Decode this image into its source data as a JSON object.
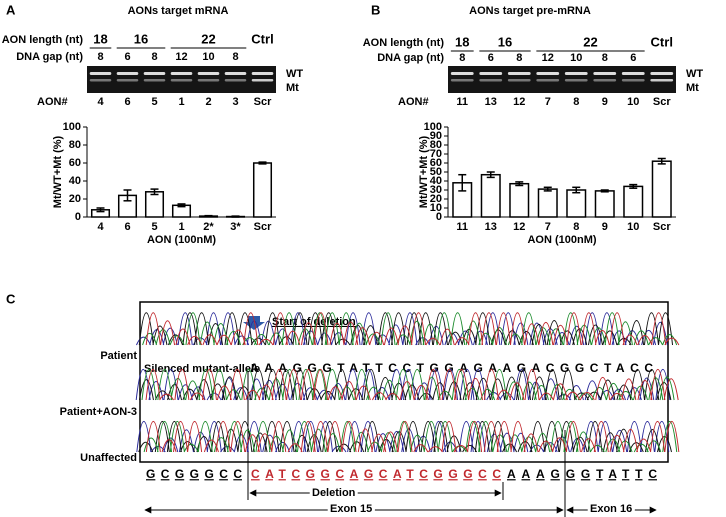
{
  "chart_data": [
    {
      "type": "bar",
      "panel_label": "A",
      "title": "AONs target mRNA",
      "ylabel": "Mt/WT+Mt (%)",
      "xlabel": "AON (100nM)",
      "categories": [
        "4",
        "6",
        "5",
        "1",
        "2*",
        "3*",
        "Scr"
      ],
      "values": [
        8,
        24,
        28,
        13,
        1,
        0.5,
        60
      ],
      "errors": [
        2,
        6,
        3,
        1.5,
        0.5,
        0.5,
        1
      ],
      "ylim": [
        0,
        100
      ],
      "yticks": [
        0,
        20,
        40,
        60,
        80,
        100
      ],
      "color": "#ffffff"
    },
    {
      "type": "bar",
      "panel_label": "B",
      "title": "AONs target pre-mRNA",
      "ylabel": "Mt/WT+Mt (%)",
      "xlabel": "AON (100nM)",
      "categories": [
        "11",
        "13",
        "12",
        "7",
        "8",
        "9",
        "10",
        "Scr"
      ],
      "values": [
        38,
        47,
        37,
        31,
        30,
        29,
        34,
        62
      ],
      "errors": [
        9,
        3,
        2,
        2,
        3,
        1,
        2,
        3
      ],
      "ylim": [
        0,
        100
      ],
      "yticks": [
        0,
        10,
        20,
        30,
        40,
        50,
        60,
        70,
        80,
        90,
        100
      ],
      "color": "#ffffff"
    }
  ],
  "gels": [
    {
      "rows": [
        {
          "label": "AON length (nt)",
          "items": [
            "18",
            "16",
            "22",
            "Ctrl"
          ]
        },
        {
          "label": "DNA gap (nt)",
          "items": [
            "8",
            "6",
            "8",
            "12",
            "10",
            "8"
          ]
        }
      ],
      "band_labels": [
        "WT",
        "Mt"
      ],
      "aon_label": "AON#",
      "aons": [
        "4",
        "6",
        "5",
        "1",
        "2",
        "3",
        "Scr"
      ]
    },
    {
      "rows": [
        {
          "label": "AON length (nt)",
          "items": [
            "18",
            "16",
            "22",
            "Ctrl"
          ]
        },
        {
          "label": "DNA gap (nt)",
          "items": [
            "8",
            "6",
            "8",
            "12",
            "10",
            "8",
            "6"
          ]
        }
      ],
      "band_labels": [
        "WT",
        "Mt"
      ],
      "aon_label": "AON#",
      "aons": [
        "11",
        "13",
        "12",
        "7",
        "8",
        "9",
        "10",
        "Scr"
      ]
    }
  ],
  "panel_c": {
    "panel_label": "C",
    "arrow_label": "Start of deletion",
    "rows": [
      "Patient",
      "Patient+AON-3",
      "Unaffected"
    ],
    "silenced_label": "Silenced mutant-allele",
    "silenced_sequence": "AAAGGGTATTCCTGGAGAAGACGGCTACC",
    "reference_sequence": [
      "GCGGGCC",
      "CATCGGCAGCATCGGGCC",
      "AAAGGGTATTC"
    ],
    "deletion_label": "Deletion",
    "exon_labels": [
      "Exon 15",
      "Exon 16"
    ]
  }
}
